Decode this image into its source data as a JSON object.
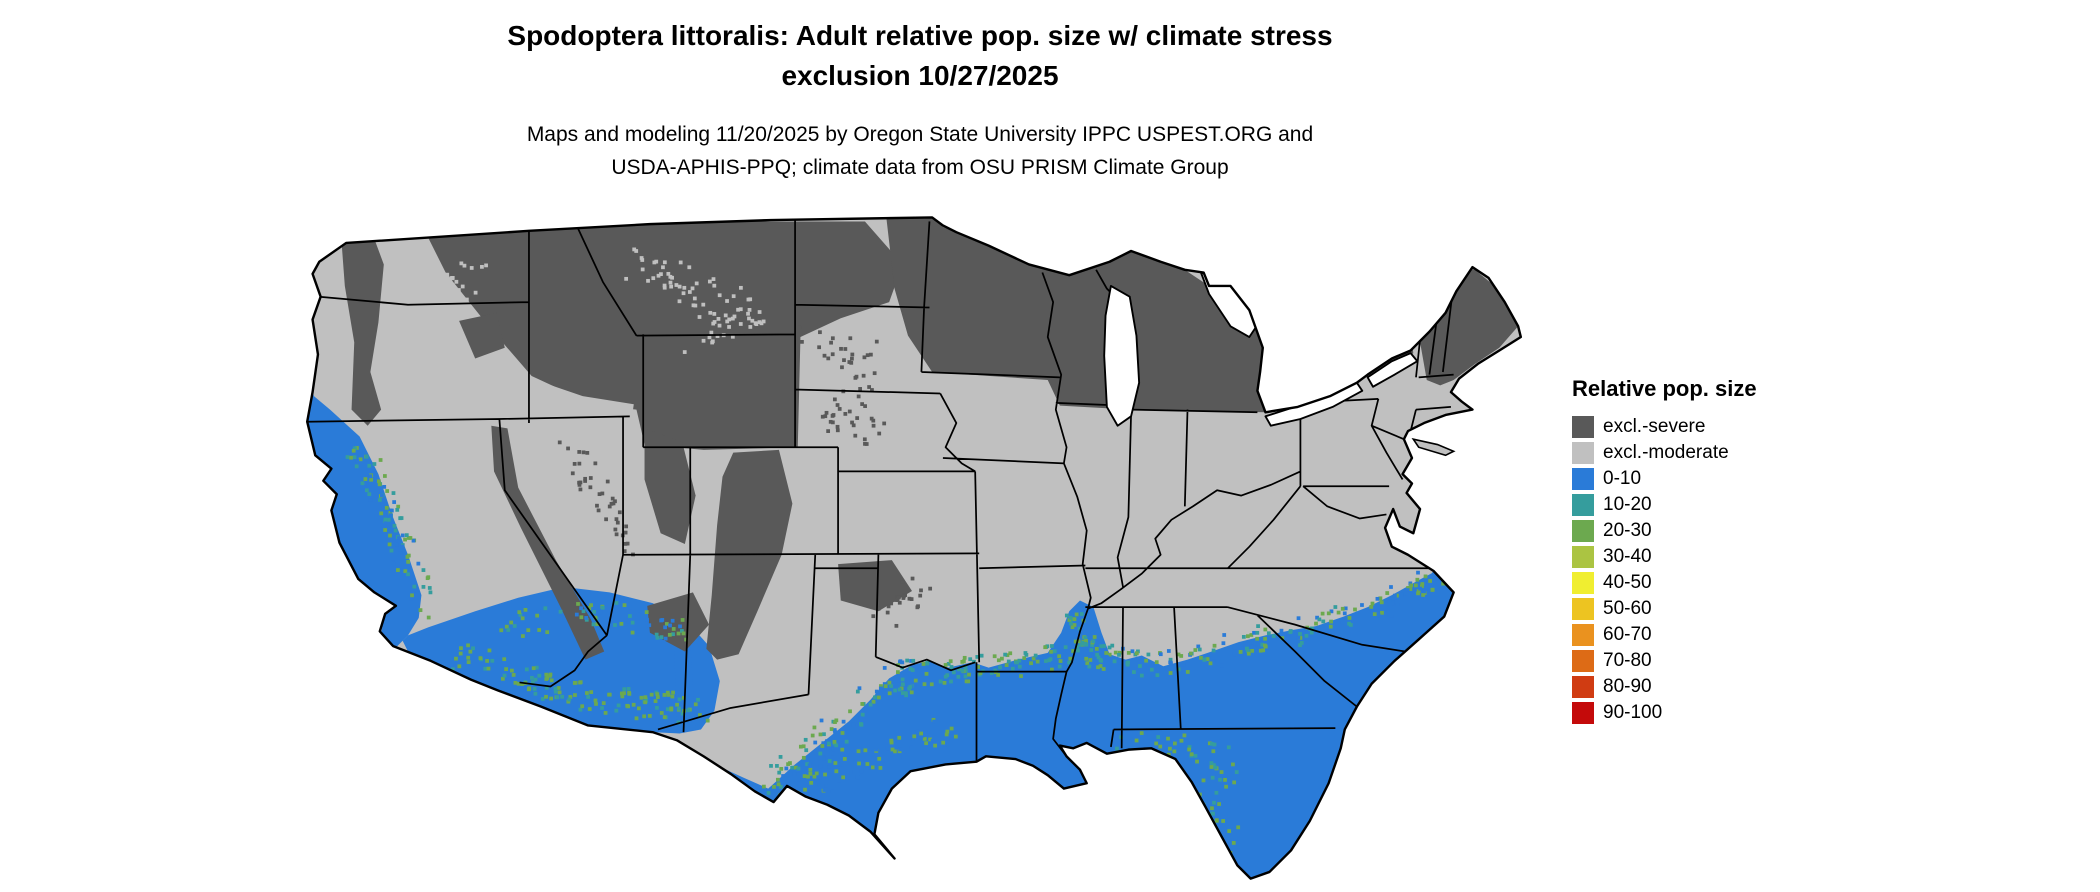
{
  "title": {
    "line1": "Spodoptera littoralis: Adult relative pop. size w/ climate stress",
    "line2": "exclusion 10/27/2025"
  },
  "subtitle": {
    "line1": "Maps and modeling 11/20/2025 by Oregon State University IPPC USPEST.ORG and",
    "line2": "USDA-APHIS-PPQ; climate data from OSU PRISM Climate Group"
  },
  "legend": {
    "title": "Relative pop. size",
    "items": [
      {
        "label": "excl.-severe",
        "color": "#595959"
      },
      {
        "label": "excl.-moderate",
        "color": "#c0c0c0"
      },
      {
        "label": "0-10",
        "color": "#2a7bd8"
      },
      {
        "label": "10-20",
        "color": "#359d9d"
      },
      {
        "label": "20-30",
        "color": "#6ca94f"
      },
      {
        "label": "30-40",
        "color": "#abc442"
      },
      {
        "label": "40-50",
        "color": "#f0ee30"
      },
      {
        "label": "50-60",
        "color": "#edc421"
      },
      {
        "label": "60-70",
        "color": "#ea921f"
      },
      {
        "label": "70-80",
        "color": "#dd6b16"
      },
      {
        "label": "80-90",
        "color": "#d03c12"
      },
      {
        "label": "90-100",
        "color": "#c40a0a"
      }
    ]
  },
  "map": {
    "region": "Contiguous United States",
    "border_color": "#000000",
    "water_color": "#ffffff"
  }
}
